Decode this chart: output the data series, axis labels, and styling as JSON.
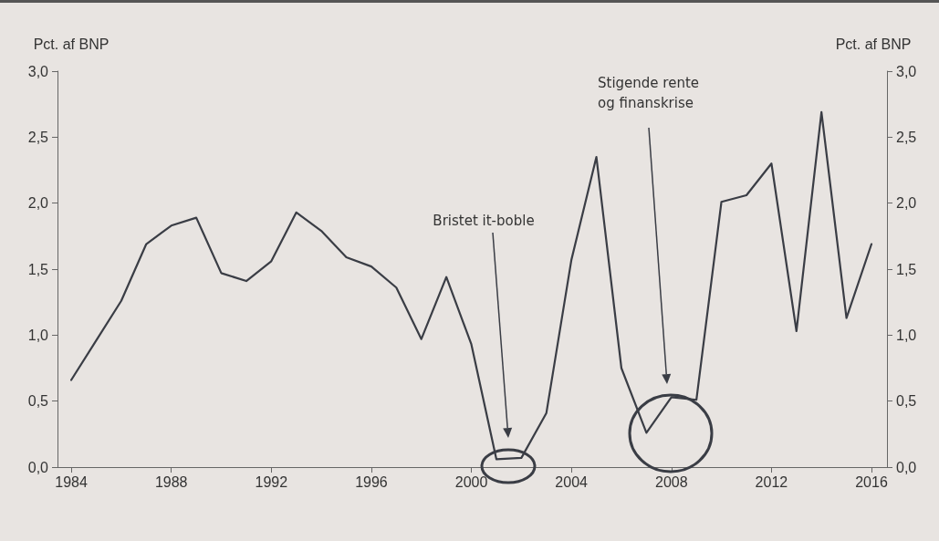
{
  "chart_data": {
    "type": "line",
    "ylabel": "Pct. af BNP",
    "y2label": "Pct. af BNP",
    "x": [
      1984,
      1985,
      1986,
      1987,
      1988,
      1989,
      1990,
      1991,
      1992,
      1993,
      1994,
      1995,
      1996,
      1997,
      1998,
      1999,
      2000,
      2001,
      2002,
      2003,
      2004,
      2005,
      2006,
      2007,
      2008,
      2009,
      2010,
      2011,
      2012,
      2013,
      2014,
      2015,
      2016
    ],
    "series": [
      {
        "color": "#3a3d45",
        "values": [
          0.66,
          0.96,
          1.26,
          1.69,
          1.83,
          1.89,
          1.47,
          1.41,
          1.56,
          1.93,
          1.79,
          1.59,
          1.52,
          1.36,
          0.97,
          1.44,
          0.93,
          0.06,
          0.07,
          0.41,
          1.57,
          2.35,
          0.75,
          0.26,
          0.53,
          0.51,
          2.01,
          2.06,
          2.3,
          1.03,
          2.69,
          1.13,
          1.69
        ]
      }
    ],
    "xlim": [
      1983.45,
      2016.62
    ],
    "xticks": [
      1984,
      1988,
      1992,
      1996,
      2000,
      2004,
      2008,
      2012,
      2016
    ],
    "ylim": [
      0,
      3
    ],
    "yticks": [
      {
        "value": 0,
        "label": "0,0"
      },
      {
        "value": 0.5,
        "label": "0,5"
      },
      {
        "value": 1,
        "label": "1,0"
      },
      {
        "value": 1.5,
        "label": "1,5"
      },
      {
        "value": 2,
        "label": "2,0"
      },
      {
        "value": 2.5,
        "label": "2,5"
      },
      {
        "value": 3,
        "label": "3,0"
      }
    ],
    "y2lim": [
      0,
      3
    ],
    "y2ticks": [
      {
        "value": 0,
        "label": "0,0"
      },
      {
        "value": 0.5,
        "label": "0,5"
      },
      {
        "value": 1,
        "label": "1,0"
      },
      {
        "value": 1.5,
        "label": "1,5"
      },
      {
        "value": 2,
        "label": "2,0"
      },
      {
        "value": 2.5,
        "label": "2,5"
      },
      {
        "value": 3,
        "label": "3,0"
      }
    ],
    "annotations": [
      "Bristet it-boble",
      "Stigende rente\nog finanskrise"
    ],
    "grid": false,
    "marker": "none",
    "line_style": "solid"
  }
}
